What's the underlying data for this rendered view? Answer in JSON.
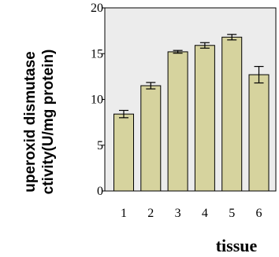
{
  "chart_data": {
    "type": "bar",
    "categories": [
      "1",
      "2",
      "3",
      "4",
      "5",
      "6"
    ],
    "values": [
      8.4,
      11.5,
      15.2,
      15.9,
      16.8,
      12.7
    ],
    "errors": [
      0.4,
      0.35,
      0.15,
      0.3,
      0.3,
      0.9
    ],
    "ylim": [
      0,
      20
    ],
    "y_ticks": [
      "0",
      "5",
      "10",
      "15",
      "20"
    ],
    "y_tick_values": [
      0,
      5,
      10,
      15,
      20
    ],
    "xlabel": "tissue",
    "ylabel_lines": [
      "uperoxid dismutase",
      "ctivity(U/mg protein)"
    ],
    "grid": false,
    "plot_background": "#ececec",
    "bar_color": "#d6d39e",
    "bar_edge_color": "#000000"
  }
}
